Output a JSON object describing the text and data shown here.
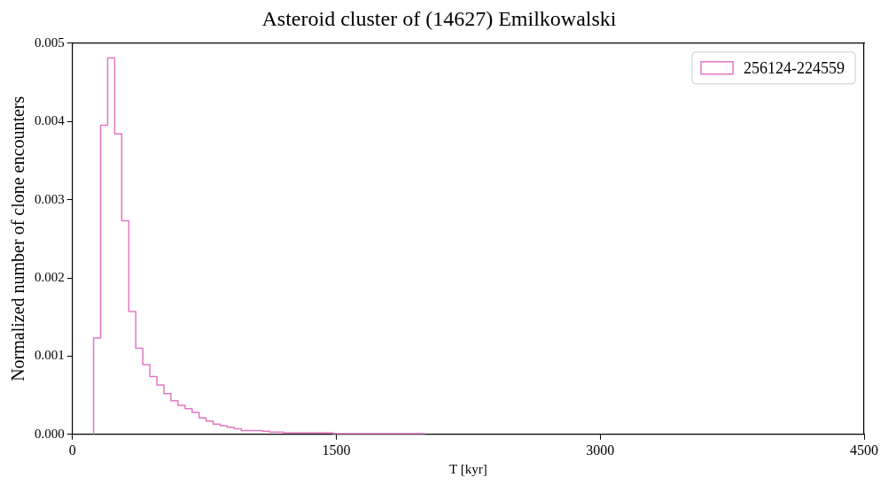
{
  "chart_data": {
    "type": "histogram",
    "title": "Asteroid cluster of (14627) Emilkowalski",
    "xlabel": "T [kyr]",
    "ylabel": "Normalized number of clone encounters",
    "bins": [
      120,
      160,
      200,
      240,
      280,
      320,
      360,
      400,
      440,
      480,
      520,
      560,
      600,
      640,
      680,
      720,
      760,
      800,
      840,
      880,
      920,
      960,
      1000,
      1040,
      1080,
      1120,
      1160,
      1200,
      1240,
      1280,
      1320,
      1360,
      1400,
      1440,
      1480,
      1520,
      1560,
      1600,
      1640,
      1680,
      1720,
      1760,
      1800,
      1840,
      1880,
      1920,
      1960,
      2000
    ],
    "series": [
      {
        "name": "256124-224559",
        "color": "#e377c2",
        "values": [
          0.00123,
          0.00395,
          0.00481,
          0.00384,
          0.00273,
          0.00157,
          0.0011,
          0.00089,
          0.00074,
          0.00063,
          0.00052,
          0.00043,
          0.00037,
          0.00033,
          0.00028,
          0.00021,
          0.00017,
          0.00013,
          0.00011,
          9e-05,
          7e-05,
          5e-05,
          5e-05,
          5e-05,
          4e-05,
          3e-05,
          3e-05,
          2e-05,
          2e-05,
          2e-05,
          2e-05,
          2e-05,
          2e-05,
          2e-05,
          1e-05,
          1e-05,
          1e-05,
          1e-05,
          1e-05,
          1e-05,
          1e-05,
          1e-05,
          1e-05,
          1e-05,
          1e-05,
          1e-05,
          1e-05
        ]
      }
    ],
    "xlim": [
      0,
      4500
    ],
    "xticks": [
      0,
      1500,
      3000,
      4500
    ],
    "ylim": [
      0,
      0.005
    ],
    "yticks": [
      {
        "value": 0,
        "label": "0.000"
      },
      {
        "value": 0.001,
        "label": "0.001"
      },
      {
        "value": 0.002,
        "label": "0.002"
      },
      {
        "value": 0.003,
        "label": "0.003"
      },
      {
        "value": 0.004,
        "label": "0.004"
      },
      {
        "value": 0.005,
        "label": "0.005"
      }
    ],
    "grid": false,
    "legend": "top right"
  }
}
